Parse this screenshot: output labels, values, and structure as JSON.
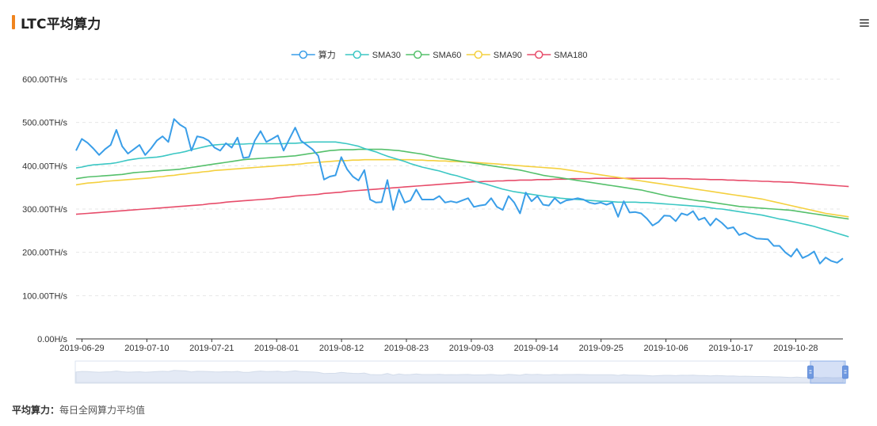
{
  "header": {
    "title": "LTC平均算力",
    "accent_color": "#f0841e",
    "menu_icon": "hamburger-menu-icon"
  },
  "footer": {
    "label": "平均算力：",
    "description": "每日全网算力平均值"
  },
  "chart_data": {
    "type": "line",
    "y_unit": "TH/s",
    "ylim": [
      0,
      600
    ],
    "y_ticks": [
      "0.00H/s",
      "100.00TH/s",
      "200.00TH/s",
      "300.00TH/s",
      "400.00TH/s",
      "500.00TH/s",
      "600.00TH/s"
    ],
    "x_tick_labels": [
      "2019-06-29",
      "2019-07-10",
      "2019-07-21",
      "2019-08-01",
      "2019-08-12",
      "2019-08-23",
      "2019-09-03",
      "2019-09-14",
      "2019-09-25",
      "2019-10-06",
      "2019-10-17",
      "2019-10-28"
    ],
    "x_start": "2019-06-28",
    "x_end": "2019-11-05",
    "grid": true,
    "legend_position": "top-center",
    "series": [
      {
        "name": "算力",
        "color": "#3a9ee8",
        "values": [
          435,
          462,
          453,
          440,
          425,
          438,
          448,
          483,
          445,
          428,
          438,
          448,
          425,
          440,
          458,
          468,
          455,
          508,
          495,
          487,
          435,
          468,
          465,
          458,
          442,
          435,
          452,
          442,
          465,
          418,
          420,
          458,
          480,
          455,
          462,
          470,
          435,
          462,
          488,
          458,
          448,
          438,
          423,
          368,
          375,
          378,
          420,
          392,
          375,
          366,
          390,
          322,
          315,
          316,
          367,
          298,
          345,
          315,
          320,
          345,
          322,
          322,
          322,
          330,
          315,
          318,
          315,
          320,
          325,
          305,
          308,
          310,
          325,
          305,
          298,
          330,
          315,
          290,
          338,
          318,
          330,
          310,
          308,
          325,
          313,
          320,
          322,
          325,
          322,
          315,
          312,
          315,
          310,
          315,
          282,
          318,
          292,
          293,
          290,
          278,
          262,
          270,
          285,
          284,
          272,
          290,
          286,
          295,
          275,
          280,
          262,
          278,
          268,
          255,
          258,
          240,
          245,
          238,
          232,
          231,
          230,
          215,
          215,
          200,
          190,
          208,
          187,
          193,
          202,
          174,
          188,
          180,
          176,
          186
        ]
      },
      {
        "name": "SMA30",
        "color": "#3cc7c4",
        "values": [
          395,
          397,
          400,
          402,
          403,
          404,
          405,
          407,
          410,
          413,
          415,
          417,
          418,
          419,
          420,
          422,
          425,
          428,
          430,
          433,
          437,
          440,
          443,
          446,
          448,
          449,
          450,
          450,
          450,
          450,
          451,
          451,
          451,
          451,
          451,
          451,
          451,
          452,
          452,
          453,
          454,
          455,
          455,
          455,
          455,
          455,
          453,
          451,
          448,
          445,
          440,
          436,
          432,
          427,
          422,
          418,
          414,
          410,
          405,
          401,
          397,
          394,
          391,
          388,
          384,
          380,
          377,
          373,
          369,
          365,
          361,
          358,
          354,
          350,
          346,
          343,
          340,
          338,
          336,
          334,
          332,
          330,
          328,
          327,
          325,
          324,
          323,
          322,
          321,
          320,
          319,
          318,
          318,
          317,
          316,
          316,
          316,
          316,
          315,
          315,
          314,
          313,
          312,
          311,
          310,
          309,
          308,
          307,
          306,
          305,
          303,
          301,
          300,
          298,
          296,
          294,
          292,
          290,
          288,
          286,
          283,
          280,
          277,
          275,
          272,
          269,
          266,
          263,
          260,
          256,
          252,
          248,
          244,
          240,
          236
        ]
      },
      {
        "name": "SMA60",
        "color": "#55c06b",
        "values": [
          370,
          372,
          374,
          375,
          376,
          377,
          378,
          379,
          380,
          382,
          384,
          385,
          386,
          387,
          388,
          389,
          390,
          391,
          392,
          394,
          396,
          398,
          400,
          402,
          404,
          406,
          408,
          410,
          412,
          414,
          415,
          416,
          417,
          418,
          419,
          420,
          421,
          422,
          423,
          425,
          427,
          429,
          431,
          433,
          435,
          436,
          437,
          437,
          437,
          438,
          438,
          438,
          438,
          438,
          437,
          436,
          435,
          433,
          431,
          429,
          427,
          424,
          421,
          418,
          416,
          414,
          412,
          410,
          408,
          406,
          404,
          402,
          400,
          398,
          396,
          394,
          392,
          390,
          387,
          384,
          381,
          378,
          376,
          374,
          372,
          370,
          368,
          366,
          364,
          362,
          360,
          358,
          356,
          354,
          352,
          350,
          348,
          346,
          344,
          341,
          338,
          335,
          332,
          329,
          327,
          325,
          323,
          321,
          319,
          318,
          316,
          314,
          312,
          310,
          308,
          306,
          305,
          304,
          303,
          302,
          301,
          300,
          299,
          298,
          297,
          295,
          293,
          291,
          289,
          287,
          285,
          283,
          281,
          279,
          277
        ]
      },
      {
        "name": "SMA90",
        "color": "#f4d03f",
        "values": [
          356,
          358,
          360,
          361,
          362,
          364,
          365,
          366,
          367,
          368,
          369,
          370,
          371,
          372,
          374,
          375,
          377,
          378,
          380,
          381,
          383,
          384,
          386,
          387,
          389,
          390,
          391,
          392,
          393,
          394,
          395,
          396,
          397,
          398,
          399,
          400,
          401,
          402,
          403,
          404,
          406,
          407,
          408,
          409,
          410,
          411,
          412,
          412,
          413,
          413,
          414,
          414,
          414,
          414,
          414,
          414,
          414,
          414,
          414,
          413,
          413,
          412,
          412,
          411,
          411,
          410,
          410,
          409,
          409,
          408,
          407,
          406,
          405,
          404,
          403,
          402,
          401,
          400,
          399,
          398,
          397,
          396,
          395,
          394,
          393,
          391,
          389,
          387,
          385,
          383,
          381,
          379,
          377,
          375,
          373,
          371,
          369,
          367,
          365,
          363,
          361,
          359,
          357,
          355,
          353,
          351,
          349,
          347,
          345,
          343,
          341,
          339,
          337,
          335,
          333,
          331,
          329,
          327,
          325,
          323,
          320,
          317,
          314,
          311,
          308,
          305,
          302,
          299,
          296,
          293,
          290,
          288,
          286,
          284,
          282
        ]
      },
      {
        "name": "SMA180",
        "color": "#e74c6a",
        "values": [
          288,
          289,
          290,
          291,
          292,
          293,
          294,
          295,
          296,
          297,
          298,
          299,
          300,
          301,
          302,
          303,
          304,
          305,
          306,
          307,
          308,
          309,
          310,
          312,
          313,
          314,
          316,
          317,
          318,
          319,
          320,
          321,
          322,
          323,
          324,
          326,
          327,
          328,
          330,
          331,
          332,
          333,
          334,
          336,
          337,
          338,
          339,
          341,
          342,
          343,
          344,
          345,
          346,
          347,
          348,
          349,
          350,
          351,
          352,
          353,
          354,
          355,
          356,
          357,
          358,
          359,
          360,
          361,
          362,
          363,
          363,
          364,
          364,
          365,
          365,
          366,
          366,
          367,
          367,
          367,
          368,
          368,
          368,
          369,
          369,
          369,
          370,
          370,
          370,
          370,
          371,
          371,
          371,
          371,
          371,
          371,
          371,
          371,
          371,
          371,
          371,
          371,
          371,
          370,
          370,
          370,
          370,
          369,
          369,
          369,
          368,
          368,
          368,
          367,
          367,
          366,
          366,
          365,
          365,
          364,
          364,
          363,
          363,
          362,
          362,
          361,
          360,
          359,
          358,
          357,
          356,
          355,
          354,
          353,
          352
        ]
      }
    ]
  }
}
